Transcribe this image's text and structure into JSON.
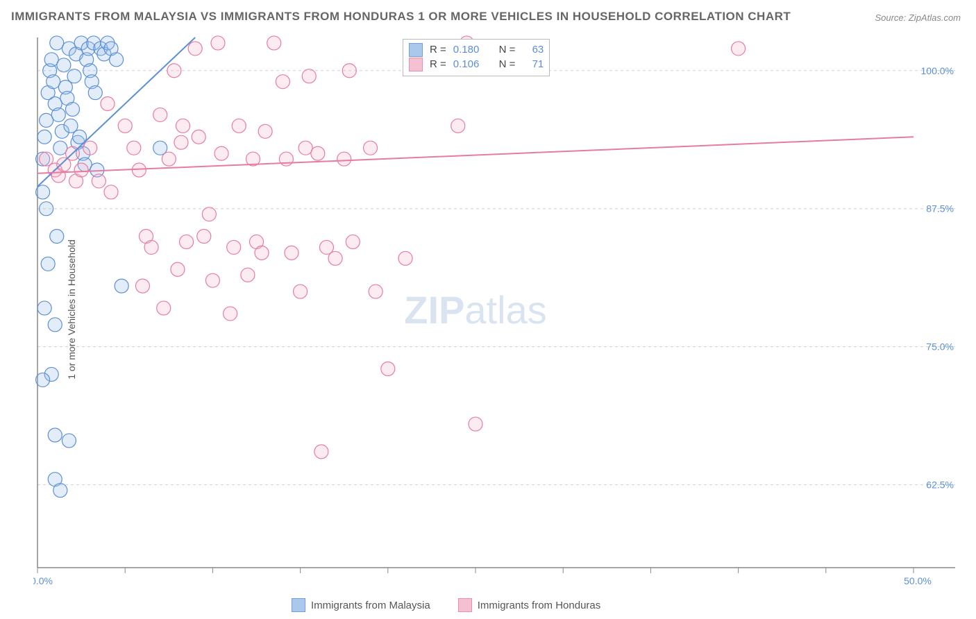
{
  "title": "IMMIGRANTS FROM MALAYSIA VS IMMIGRANTS FROM HONDURAS 1 OR MORE VEHICLES IN HOUSEHOLD CORRELATION CHART",
  "source": "Source: ZipAtlas.com",
  "y_axis_label": "1 or more Vehicles in Household",
  "watermark_bold": "ZIP",
  "watermark_rest": "atlas",
  "chart": {
    "type": "scatter",
    "background_color": "#ffffff",
    "grid_color": "#d0d0d0",
    "axis_color": "#888888",
    "label_color": "#5a8fd6",
    "label_fontsize": 14,
    "xlim": [
      0,
      50
    ],
    "ylim": [
      55,
      103
    ],
    "x_ticks": [
      0,
      5,
      10,
      15,
      20,
      25,
      30,
      35,
      40,
      45,
      50
    ],
    "x_tick_labels": {
      "0": "0.0%",
      "50": "50.0%"
    },
    "y_ticks": [
      62.5,
      75.0,
      87.5,
      100.0
    ],
    "y_tick_labels": [
      "62.5%",
      "75.0%",
      "87.5%",
      "100.0%"
    ],
    "marker_radius": 10,
    "marker_stroke_width": 1.2,
    "marker_fill_opacity": 0.28,
    "line_width": 2,
    "series": [
      {
        "key": "malaysia",
        "label": "Immigrants from Malaysia",
        "color_stroke": "#5a8fd6",
        "color_fill": "#9cbfe8",
        "trend": {
          "x1": 0,
          "y1": 89.5,
          "x2": 9,
          "y2": 103
        },
        "points": [
          [
            0.3,
            92
          ],
          [
            0.4,
            94
          ],
          [
            0.5,
            95.5
          ],
          [
            0.6,
            98
          ],
          [
            0.7,
            100
          ],
          [
            0.8,
            101
          ],
          [
            0.9,
            99
          ],
          [
            1.0,
            97
          ],
          [
            1.1,
            102.5
          ],
          [
            1.2,
            96
          ],
          [
            1.3,
            93
          ],
          [
            1.4,
            94.5
          ],
          [
            1.5,
            100.5
          ],
          [
            1.6,
            98.5
          ],
          [
            1.7,
            97.5
          ],
          [
            1.8,
            102
          ],
          [
            1.9,
            95
          ],
          [
            2.0,
            96.5
          ],
          [
            2.1,
            99.5
          ],
          [
            2.2,
            101.5
          ],
          [
            2.3,
            93.5
          ],
          [
            2.4,
            94
          ],
          [
            2.5,
            102.5
          ],
          [
            2.6,
            92.5
          ],
          [
            2.7,
            91.5
          ],
          [
            2.8,
            101
          ],
          [
            2.9,
            102
          ],
          [
            3.0,
            100
          ],
          [
            3.1,
            99
          ],
          [
            3.2,
            102.5
          ],
          [
            3.3,
            98
          ],
          [
            3.4,
            91
          ],
          [
            3.6,
            102
          ],
          [
            3.8,
            101.5
          ],
          [
            4.0,
            102.5
          ],
          [
            4.2,
            102
          ],
          [
            4.5,
            101
          ],
          [
            4.8,
            80.5
          ],
          [
            7.0,
            93
          ],
          [
            0.3,
            89
          ],
          [
            1.1,
            85
          ],
          [
            0.5,
            87.5
          ],
          [
            0.4,
            78.5
          ],
          [
            0.6,
            82.5
          ],
          [
            1.0,
            77
          ],
          [
            0.8,
            72.5
          ],
          [
            0.3,
            72
          ],
          [
            1.0,
            67
          ],
          [
            1.8,
            66.5
          ],
          [
            1.0,
            63
          ],
          [
            1.3,
            62
          ]
        ]
      },
      {
        "key": "honduras",
        "label": "Immigrants from Honduras",
        "color_stroke": "#e77ba0",
        "color_fill": "#f4b6ca",
        "trend": {
          "x1": 0,
          "y1": 90.7,
          "x2": 50,
          "y2": 94
        },
        "points": [
          [
            0.5,
            92
          ],
          [
            1.0,
            91
          ],
          [
            1.2,
            90.5
          ],
          [
            1.5,
            91.5
          ],
          [
            2.0,
            92.5
          ],
          [
            2.2,
            90
          ],
          [
            2.5,
            91
          ],
          [
            3.0,
            93
          ],
          [
            3.5,
            90
          ],
          [
            4.0,
            97
          ],
          [
            4.2,
            89
          ],
          [
            5.0,
            95
          ],
          [
            5.5,
            93
          ],
          [
            5.8,
            91
          ],
          [
            6.0,
            80.5
          ],
          [
            6.2,
            85
          ],
          [
            6.5,
            84
          ],
          [
            7.0,
            96
          ],
          [
            7.2,
            78.5
          ],
          [
            7.5,
            92
          ],
          [
            7.8,
            100
          ],
          [
            8.0,
            82
          ],
          [
            8.2,
            93.5
          ],
          [
            8.5,
            84.5
          ],
          [
            9.0,
            102
          ],
          [
            9.2,
            94
          ],
          [
            9.5,
            85
          ],
          [
            9.8,
            87
          ],
          [
            10.0,
            81
          ],
          [
            10.3,
            102.5
          ],
          [
            10.5,
            92.5
          ],
          [
            11.0,
            78
          ],
          [
            11.2,
            84
          ],
          [
            11.5,
            95
          ],
          [
            12.0,
            81.5
          ],
          [
            12.3,
            92
          ],
          [
            12.5,
            84.5
          ],
          [
            12.8,
            83.5
          ],
          [
            13.0,
            94.5
          ],
          [
            13.5,
            102.5
          ],
          [
            14.0,
            99
          ],
          [
            14.2,
            92
          ],
          [
            14.5,
            83.5
          ],
          [
            15.0,
            80
          ],
          [
            15.3,
            93
          ],
          [
            15.5,
            99.5
          ],
          [
            16.0,
            92.5
          ],
          [
            16.2,
            65.5
          ],
          [
            16.5,
            84
          ],
          [
            17.0,
            83
          ],
          [
            17.5,
            92
          ],
          [
            17.8,
            100
          ],
          [
            18.0,
            84.5
          ],
          [
            19.0,
            93
          ],
          [
            19.3,
            80
          ],
          [
            20.0,
            73
          ],
          [
            21.0,
            83
          ],
          [
            24.0,
            95
          ],
          [
            24.5,
            102.5
          ],
          [
            25.0,
            68
          ],
          [
            40.0,
            102
          ],
          [
            8.3,
            95
          ]
        ]
      }
    ]
  },
  "stats": [
    {
      "series_key": "malaysia",
      "R": "0.180",
      "N": "63"
    },
    {
      "series_key": "honduras",
      "R": "0.106",
      "N": "71"
    }
  ],
  "stats_labels": {
    "R": "R =",
    "N": "N ="
  },
  "legend": [
    {
      "series_key": "malaysia"
    },
    {
      "series_key": "honduras"
    }
  ]
}
